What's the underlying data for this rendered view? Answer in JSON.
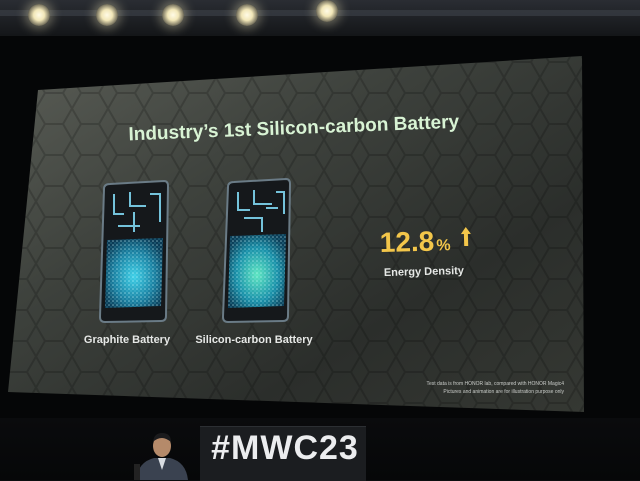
{
  "slide": {
    "title": "Industry’s 1st Silicon-carbon Battery",
    "battery_left_label": "Graphite Battery",
    "battery_right_label": "Silicon-carbon Battery",
    "stat_value": "12.8",
    "stat_unit": "%",
    "stat_label": "Energy Density",
    "footnote_line1": "Test data is from HONOR lab, compared with HONOR Magic4",
    "footnote_line2": "Pictures and animation are for illustration purpose only",
    "accent_color": "#f3c64a",
    "title_color": "#d8f3d4"
  },
  "stage": {
    "hashtag": "#MWC23"
  },
  "icons": [
    "up-arrow-icon",
    "phone-battery-graphite",
    "phone-battery-silicon-carbon"
  ]
}
